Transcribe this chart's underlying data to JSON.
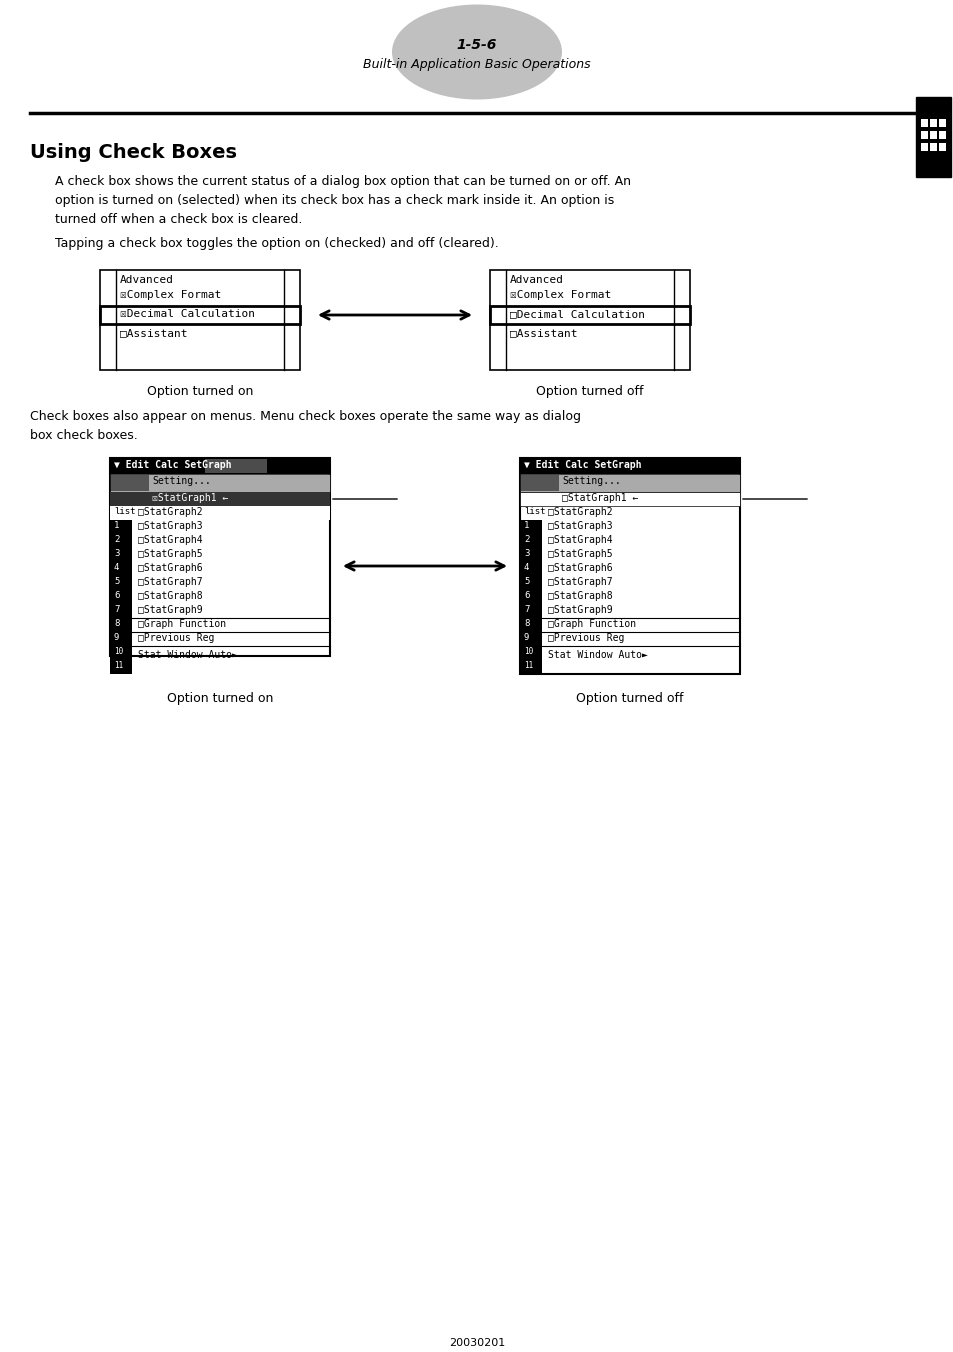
{
  "page_number": "1-5-6",
  "page_subtitle": "Built-in Application Basic Operations",
  "section_title": "Using Check Boxes",
  "body_text_1a": "A check box shows the current status of a dialog box option that can be turned on or off. An",
  "body_text_1b": "option is turned on (selected) when its check box has a check mark inside it. An option is",
  "body_text_1c": "turned off when a check box is cleared.",
  "body_text_2": "Tapping a check box toggles the option on (checked) and off (cleared).",
  "body_text_3a": "Check boxes also appear on menus. Menu check boxes operate the same way as dialog",
  "body_text_3b": "box check boxes.",
  "caption_on": "Option turned on",
  "caption_off": "Option turned off",
  "footer_text": "20030201",
  "bg_color": "#ffffff",
  "text_color": "#000000",
  "gray_oval_color": "#c0c0c0"
}
